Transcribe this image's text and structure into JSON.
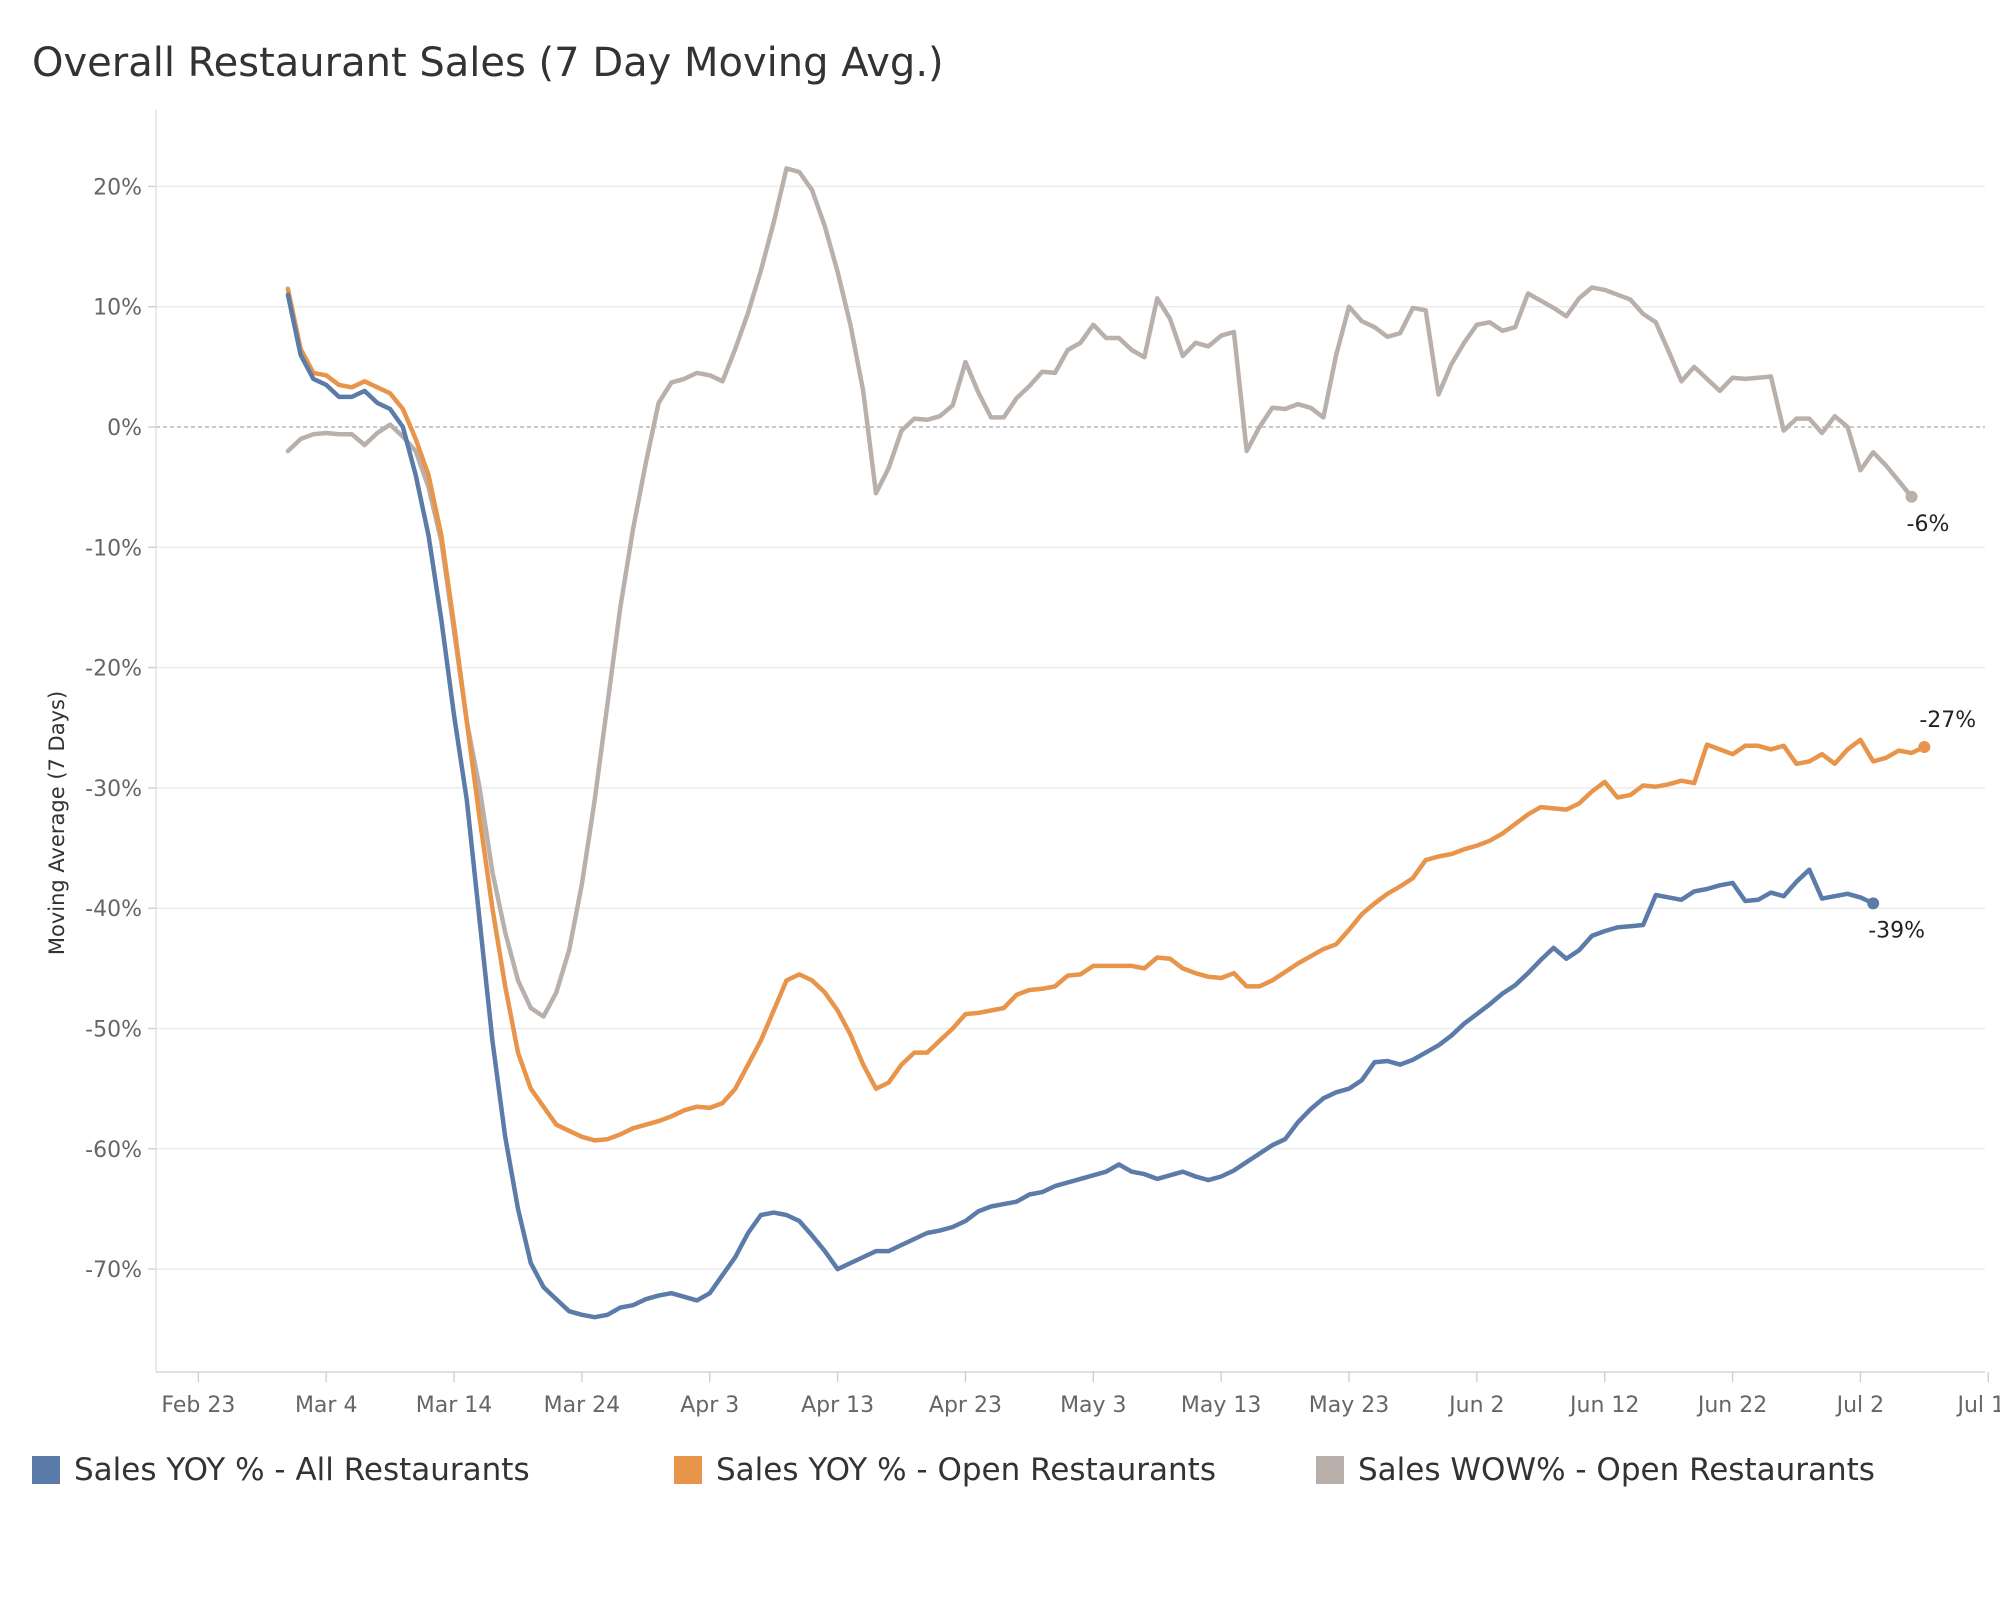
{
  "title": "Overall Restaurant Sales (7 Day Moving Avg.)",
  "chart_data": {
    "type": "line",
    "title": "Overall Restaurant Sales (7 Day Moving Avg.)",
    "ylabel": "Moving Average (7 Days)",
    "xlabel": "",
    "x_ticks": [
      "Feb 23",
      "Mar 4",
      "Mar 14",
      "Mar 24",
      "Apr 3",
      "Apr 13",
      "Apr 23",
      "May 3",
      "May 13",
      "May 23",
      "Jun 2",
      "Jun 12",
      "Jun 22",
      "Jul 2",
      "Jul 12"
    ],
    "y_ticks": [
      "20%",
      "10%",
      "0%",
      "-10%",
      "-20%",
      "-30%",
      "-40%",
      "-50%",
      "-60%",
      "-70%"
    ],
    "y_tick_values": [
      20,
      10,
      0,
      -10,
      -20,
      -30,
      -40,
      -50,
      -60,
      -70
    ],
    "ylim": [
      -78,
      26
    ],
    "xlim": [
      "2020-02-20",
      "2020-07-12"
    ],
    "zero_reference_line": true,
    "grid": "horizontal",
    "legend_position": "bottom",
    "x_start": "2020-03-01",
    "x_end": "2020-07-07",
    "x_step_days": 1,
    "series": [
      {
        "name": "Sales YOY % - All Restaurants",
        "color": "#5b7ba8",
        "end_label": "-39%",
        "values": [
          11,
          6,
          4,
          3.5,
          2.5,
          2.5,
          3,
          2,
          1.5,
          0,
          -4,
          -9,
          -16,
          -24,
          -31,
          -41,
          -51,
          -59,
          -65,
          -69.5,
          -71.5,
          -72.5,
          -73.5,
          -73.8,
          -74,
          -73.8,
          -73.2,
          -73,
          -72.5,
          -72.2,
          -72,
          -72.3,
          -72.6,
          -72,
          -70.5,
          -69,
          -67,
          -65.5,
          -65.3,
          -65.5,
          -66,
          -67.2,
          -68.5,
          -70,
          -69.5,
          -69,
          -68.5,
          -68.5,
          -68,
          -67.5,
          -67,
          -66.8,
          -66.5,
          -66,
          -65.2,
          -64.8,
          -64.6,
          -64.4,
          -63.8,
          -63.6,
          -63.1,
          -62.8,
          -62.5,
          -62.2,
          -61.9,
          -61.3,
          -61.9,
          -62.1,
          -62.5,
          -62.2,
          -61.9,
          -62.3,
          -62.6,
          -62.3,
          -61.8,
          -61.1,
          -60.4,
          -59.7,
          -59.2,
          -57.8,
          -56.7,
          -55.8,
          -55.3,
          -55,
          -54.3,
          -52.8,
          -52.7,
          -53,
          -52.6,
          -52,
          -51.4,
          -50.6,
          -49.6,
          -48.8,
          -48,
          -47.1,
          -46.4,
          -45.4,
          -44.3,
          -43.3,
          -44.2,
          -43.5,
          -42.3,
          -41.9,
          -41.6,
          -41.5,
          -41.4,
          -38.9,
          -39.1,
          -39.3,
          -38.6,
          -38.4,
          -38.1,
          -37.9,
          -39.4,
          -39.3,
          -38.7,
          -39,
          -37.8,
          -36.8,
          -39.2,
          -39,
          -38.8,
          -39.1,
          -39.6
        ]
      },
      {
        "name": "Sales YOY % - Open Restaurants",
        "color": "#e8944a",
        "end_label": "-27%",
        "values": [
          11.5,
          6.5,
          4.5,
          4.3,
          3.5,
          3.3,
          3.8,
          3.3,
          2.8,
          1.5,
          -1,
          -4,
          -9,
          -16.5,
          -24.5,
          -32.5,
          -40,
          -46.5,
          -52,
          -55,
          -56.5,
          -58,
          -58.5,
          -59,
          -59.3,
          -59.2,
          -58.8,
          -58.3,
          -58,
          -57.7,
          -57.3,
          -56.8,
          -56.5,
          -56.6,
          -56.2,
          -55,
          -53,
          -51,
          -48.5,
          -46,
          -45.5,
          -46,
          -47,
          -48.5,
          -50.5,
          -53,
          -55,
          -54.5,
          -53,
          -52,
          -52,
          -51,
          -50,
          -48.8,
          -48.7,
          -48.5,
          -48.3,
          -47.2,
          -46.8,
          -46.7,
          -46.5,
          -45.6,
          -45.5,
          -44.8,
          -44.8,
          -44.8,
          -44.8,
          -45,
          -44.1,
          -44.2,
          -45,
          -45.4,
          -45.7,
          -45.8,
          -45.4,
          -46.5,
          -46.5,
          -46,
          -45.3,
          -44.6,
          -44,
          -43.4,
          -43,
          -41.8,
          -40.5,
          -39.6,
          -38.8,
          -38.2,
          -37.5,
          -36,
          -35.7,
          -35.5,
          -35.1,
          -34.8,
          -34.4,
          -33.8,
          -33,
          -32.2,
          -31.6,
          -31.7,
          -31.8,
          -31.3,
          -30.3,
          -29.5,
          -30.8,
          -30.6,
          -29.8,
          -29.9,
          -29.7,
          -29.4,
          -29.6,
          -26.4,
          -26.8,
          -27.2,
          -26.5,
          -26.5,
          -26.8,
          -26.5,
          -28,
          -27.8,
          -27.2,
          -28,
          -26.8,
          -26,
          -27.8,
          -27.5,
          -26.9,
          -27.1,
          -26.6
        ]
      },
      {
        "name": "Sales WOW% - Open Restaurants",
        "color": "#bab0ab",
        "end_label": "-6%",
        "values": [
          -2,
          -1,
          -0.6,
          -0.5,
          -0.6,
          -0.6,
          -1.5,
          -0.5,
          0.2,
          -0.8,
          -2,
          -5,
          -9.5,
          -17,
          -24.5,
          -30,
          -37,
          -42,
          -46,
          -48.3,
          -49,
          -47,
          -43.5,
          -38,
          -31,
          -23,
          -15,
          -8.5,
          -3,
          2,
          3.7,
          4,
          4.5,
          4.3,
          3.8,
          6.5,
          9.5,
          13,
          17,
          21.5,
          21.2,
          19.7,
          16.7,
          12.9,
          8.5,
          3,
          -5.5,
          -3.4,
          -0.3,
          0.7,
          0.6,
          0.9,
          1.8,
          5.4,
          2.9,
          0.8,
          0.8,
          2.4,
          3.4,
          4.6,
          4.5,
          6.4,
          7,
          8.5,
          7.4,
          7.4,
          6.4,
          5.8,
          10.7,
          9,
          5.9,
          7,
          6.7,
          7.6,
          7.9,
          -2,
          0,
          1.6,
          1.5,
          1.9,
          1.6,
          0.8,
          6,
          10,
          8.8,
          8.3,
          7.5,
          7.8,
          9.9,
          9.7,
          2.7,
          5.2,
          7,
          8.5,
          8.7,
          8,
          8.3,
          11.1,
          10.5,
          9.9,
          9.2,
          10.7,
          11.6,
          11.4,
          11,
          10.6,
          9.4,
          8.7,
          6.3,
          3.8,
          5,
          4,
          3,
          4.1,
          4,
          4.1,
          4.2,
          -0.3,
          0.7,
          0.7,
          -0.5,
          0.9,
          0,
          -3.6,
          -2.1,
          -3.2,
          -4.5,
          -5.8
        ]
      }
    ]
  }
}
